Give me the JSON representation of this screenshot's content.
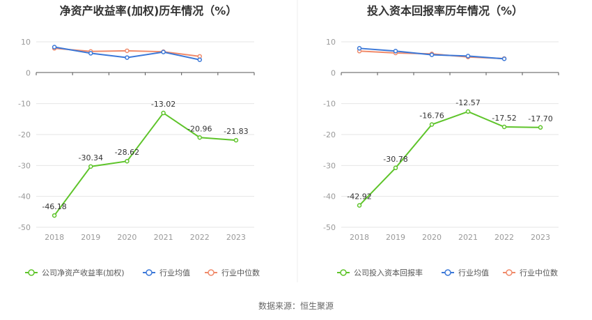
{
  "source_text": "数据来源：恒生聚源",
  "chart_data": [
    {
      "type": "line",
      "title": "净资产收益率(加权)历年情况（%）",
      "categories": [
        "2018",
        "2019",
        "2020",
        "2021",
        "2022",
        "2023"
      ],
      "ylim": [
        -50,
        10
      ],
      "yticks": [
        10,
        0,
        -10,
        -20,
        -30,
        -40,
        -50
      ],
      "grid": true,
      "legend_position": "bottom",
      "series": [
        {
          "name": "公司净资产收益率(加权)",
          "color": "#5ec42a",
          "values": [
            -46.18,
            -30.34,
            -28.62,
            -13.02,
            -20.96,
            -21.83
          ],
          "labels": [
            "-46.18",
            "-30.34",
            "-28.62",
            "-13.02",
            "-20.96",
            "-21.83"
          ]
        },
        {
          "name": "行业均值",
          "color": "#3b78d8",
          "values": [
            8.3,
            6.3,
            4.9,
            6.7,
            4.2,
            null
          ]
        },
        {
          "name": "行业中位数",
          "color": "#f08a6a",
          "values": [
            7.9,
            6.9,
            7.1,
            6.8,
            5.3,
            null
          ]
        }
      ]
    },
    {
      "type": "line",
      "title": "投入资本回报率历年情况（%）",
      "categories": [
        "2018",
        "2019",
        "2020",
        "2021",
        "2022",
        "2023"
      ],
      "ylim": [
        -50,
        10
      ],
      "yticks": [
        10,
        0,
        -10,
        -20,
        -30,
        -40,
        -50
      ],
      "grid": true,
      "legend_position": "bottom",
      "series": [
        {
          "name": "公司投入资本回报率",
          "color": "#5ec42a",
          "values": [
            -42.92,
            -30.78,
            -16.76,
            -12.57,
            -17.52,
            -17.7
          ],
          "labels": [
            "-42.92",
            "-30.78",
            "-16.76",
            "-12.57",
            "-17.52",
            "-17.70"
          ]
        },
        {
          "name": "行业均值",
          "color": "#3b78d8",
          "values": [
            7.9,
            7.0,
            5.8,
            5.4,
            4.5,
            null
          ]
        },
        {
          "name": "行业中位数",
          "color": "#f08a6a",
          "values": [
            7.0,
            6.4,
            6.1,
            5.1,
            4.6,
            null
          ]
        }
      ]
    }
  ]
}
